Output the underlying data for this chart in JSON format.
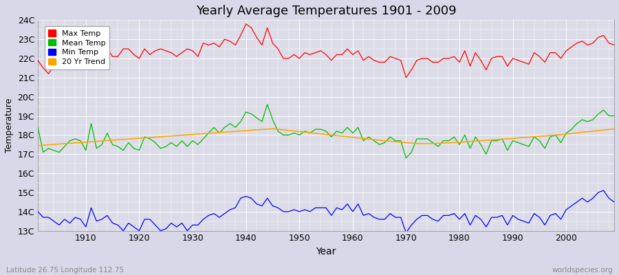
{
  "title": "Yearly Average Temperatures 1901 - 2009",
  "xlabel": "Year",
  "ylabel": "Temperature",
  "subtitle_left": "Latitude 26.75 Longitude 112.75",
  "subtitle_right": "worldspecies.org",
  "years": [
    1901,
    1902,
    1903,
    1904,
    1905,
    1906,
    1907,
    1908,
    1909,
    1910,
    1911,
    1912,
    1913,
    1914,
    1915,
    1916,
    1917,
    1918,
    1919,
    1920,
    1921,
    1922,
    1923,
    1924,
    1925,
    1926,
    1927,
    1928,
    1929,
    1930,
    1931,
    1932,
    1933,
    1934,
    1935,
    1936,
    1937,
    1938,
    1939,
    1940,
    1941,
    1942,
    1943,
    1944,
    1945,
    1946,
    1947,
    1948,
    1949,
    1950,
    1951,
    1952,
    1953,
    1954,
    1955,
    1956,
    1957,
    1958,
    1959,
    1960,
    1961,
    1962,
    1963,
    1964,
    1965,
    1966,
    1967,
    1968,
    1969,
    1970,
    1971,
    1972,
    1973,
    1974,
    1975,
    1976,
    1977,
    1978,
    1979,
    1980,
    1981,
    1982,
    1983,
    1984,
    1985,
    1986,
    1987,
    1988,
    1989,
    1990,
    1991,
    1992,
    1993,
    1994,
    1995,
    1996,
    1997,
    1998,
    1999,
    2000,
    2001,
    2002,
    2003,
    2004,
    2005,
    2006,
    2007,
    2008,
    2009
  ],
  "max_temp": [
    21.9,
    21.5,
    21.2,
    21.6,
    22.2,
    22.0,
    21.8,
    22.0,
    21.9,
    21.6,
    22.4,
    22.0,
    22.2,
    22.5,
    22.1,
    22.1,
    22.5,
    22.5,
    22.2,
    22.0,
    22.5,
    22.2,
    22.4,
    22.5,
    22.4,
    22.3,
    22.1,
    22.3,
    22.5,
    22.4,
    22.1,
    22.8,
    22.7,
    22.8,
    22.6,
    23.0,
    22.9,
    22.7,
    23.2,
    23.8,
    23.6,
    23.1,
    22.7,
    23.6,
    22.8,
    22.5,
    22.0,
    22.0,
    22.2,
    22.0,
    22.3,
    22.2,
    22.3,
    22.4,
    22.2,
    21.9,
    22.2,
    22.2,
    22.5,
    22.2,
    22.4,
    21.9,
    22.1,
    21.9,
    21.8,
    21.8,
    22.1,
    22.0,
    21.9,
    21.0,
    21.4,
    21.9,
    22.0,
    22.0,
    21.8,
    21.8,
    22.0,
    22.0,
    22.1,
    21.8,
    22.4,
    21.6,
    22.3,
    21.9,
    21.4,
    22.0,
    22.1,
    22.1,
    21.6,
    22.0,
    21.9,
    21.8,
    21.7,
    22.3,
    22.1,
    21.8,
    22.3,
    22.3,
    22.0,
    22.4,
    22.6,
    22.8,
    22.9,
    22.7,
    22.8,
    23.1,
    23.2,
    22.8,
    22.7
  ],
  "mean_temp": [
    18.4,
    17.1,
    17.3,
    17.2,
    17.1,
    17.4,
    17.7,
    17.8,
    17.7,
    17.2,
    18.6,
    17.3,
    17.5,
    18.1,
    17.5,
    17.4,
    17.2,
    17.6,
    17.3,
    17.2,
    17.9,
    17.8,
    17.6,
    17.3,
    17.4,
    17.6,
    17.4,
    17.7,
    17.4,
    17.7,
    17.5,
    17.8,
    18.1,
    18.4,
    18.1,
    18.4,
    18.6,
    18.4,
    18.7,
    19.2,
    19.1,
    18.9,
    18.7,
    19.6,
    18.8,
    18.2,
    18.0,
    18.0,
    18.1,
    18.0,
    18.2,
    18.1,
    18.3,
    18.3,
    18.2,
    17.9,
    18.2,
    18.1,
    18.4,
    18.1,
    18.4,
    17.7,
    17.9,
    17.7,
    17.5,
    17.6,
    17.9,
    17.7,
    17.7,
    16.8,
    17.1,
    17.8,
    17.8,
    17.8,
    17.6,
    17.4,
    17.7,
    17.7,
    17.9,
    17.5,
    18.0,
    17.3,
    17.9,
    17.5,
    17.0,
    17.7,
    17.7,
    17.8,
    17.2,
    17.7,
    17.6,
    17.5,
    17.4,
    17.9,
    17.7,
    17.3,
    17.9,
    18.0,
    17.6,
    18.1,
    18.3,
    18.6,
    18.8,
    18.7,
    18.8,
    19.1,
    19.3,
    19.0,
    19.0
  ],
  "min_temp": [
    14.0,
    13.7,
    13.7,
    13.5,
    13.3,
    13.6,
    13.4,
    13.7,
    13.6,
    13.2,
    14.2,
    13.5,
    13.6,
    13.8,
    13.4,
    13.3,
    13.0,
    13.4,
    13.2,
    13.0,
    13.6,
    13.6,
    13.3,
    13.0,
    13.1,
    13.4,
    13.2,
    13.4,
    13.0,
    13.3,
    13.3,
    13.6,
    13.8,
    13.9,
    13.7,
    13.9,
    14.1,
    14.2,
    14.7,
    14.8,
    14.7,
    14.4,
    14.3,
    14.7,
    14.3,
    14.2,
    14.0,
    14.0,
    14.1,
    14.0,
    14.1,
    14.0,
    14.2,
    14.2,
    14.2,
    13.8,
    14.2,
    14.1,
    14.4,
    14.0,
    14.4,
    13.8,
    13.9,
    13.7,
    13.6,
    13.6,
    13.9,
    13.7,
    13.7,
    12.9,
    13.3,
    13.6,
    13.8,
    13.8,
    13.6,
    13.5,
    13.8,
    13.8,
    13.9,
    13.6,
    13.9,
    13.3,
    13.8,
    13.6,
    13.2,
    13.7,
    13.7,
    13.8,
    13.3,
    13.8,
    13.6,
    13.5,
    13.4,
    13.9,
    13.7,
    13.3,
    13.8,
    13.9,
    13.6,
    14.1,
    14.3,
    14.5,
    14.7,
    14.5,
    14.7,
    15.0,
    15.1,
    14.7,
    14.5
  ],
  "trend": [
    17.45,
    17.47,
    17.49,
    17.51,
    17.53,
    17.55,
    17.57,
    17.59,
    17.61,
    17.63,
    17.65,
    17.67,
    17.69,
    17.71,
    17.73,
    17.75,
    17.77,
    17.79,
    17.81,
    17.83,
    17.85,
    17.87,
    17.89,
    17.91,
    17.93,
    17.95,
    17.97,
    17.99,
    18.01,
    18.03,
    18.05,
    18.07,
    18.09,
    18.11,
    18.13,
    18.15,
    18.17,
    18.19,
    18.21,
    18.23,
    18.25,
    18.27,
    18.29,
    18.31,
    18.33,
    18.3,
    18.27,
    18.24,
    18.21,
    18.18,
    18.15,
    18.12,
    18.09,
    18.06,
    18.03,
    18.0,
    17.97,
    17.94,
    17.91,
    17.88,
    17.85,
    17.82,
    17.79,
    17.76,
    17.73,
    17.7,
    17.68,
    17.65,
    17.63,
    17.6,
    17.58,
    17.56,
    17.55,
    17.55,
    17.56,
    17.57,
    17.58,
    17.59,
    17.6,
    17.62,
    17.64,
    17.66,
    17.68,
    17.7,
    17.72,
    17.74,
    17.76,
    17.78,
    17.8,
    17.82,
    17.85,
    17.87,
    17.89,
    17.91,
    17.93,
    17.95,
    17.98,
    18.0,
    18.02,
    18.05,
    18.08,
    18.11,
    18.14,
    18.17,
    18.2,
    18.23,
    18.26,
    18.29,
    18.32
  ],
  "ylim": [
    13.0,
    24.0
  ],
  "yticks": [
    13,
    14,
    15,
    16,
    17,
    18,
    19,
    20,
    21,
    22,
    23,
    24
  ],
  "ytick_labels": [
    "13C",
    "14C",
    "15C",
    "16C",
    "17C",
    "18C",
    "19C",
    "20C",
    "21C",
    "22C",
    "23C",
    "24C"
  ],
  "xlim": [
    1901,
    2009
  ],
  "xticks": [
    1910,
    1920,
    1930,
    1940,
    1950,
    1960,
    1970,
    1980,
    1990,
    2000
  ],
  "colors": {
    "max_temp": "#ff0000",
    "mean_temp": "#00bb00",
    "min_temp": "#0000ff",
    "trend": "#ffa500"
  },
  "bg_color": "#d8d8e8",
  "plot_bg_color": "#dcdce8",
  "grid_color": "#ffffff",
  "legend_labels": [
    "Max Temp",
    "Mean Temp",
    "Min Temp",
    "20 Yr Trend"
  ],
  "title_fontsize": 13,
  "axis_fontsize": 9,
  "ylabel_fontsize": 9
}
